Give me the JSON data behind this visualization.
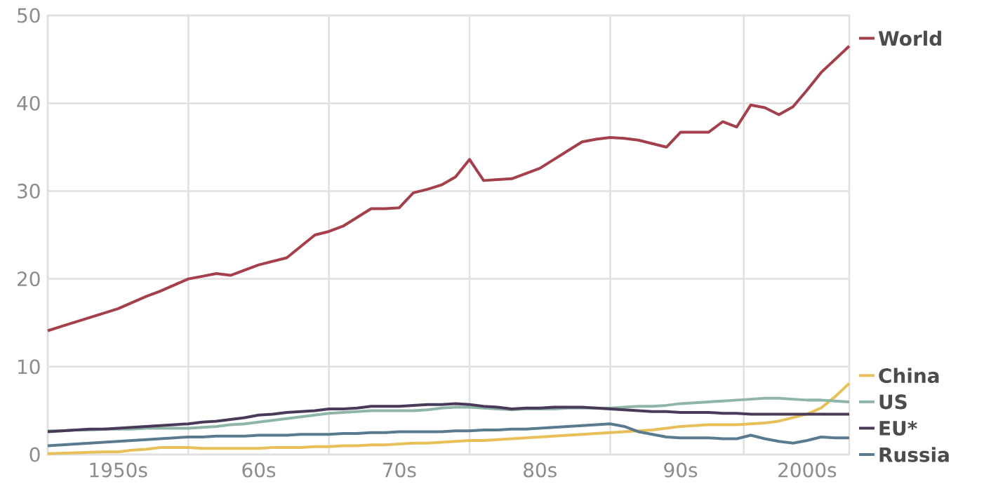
{
  "chart_data": {
    "type": "line",
    "categories": [
      null,
      null,
      null,
      null,
      null,
      "1950s",
      null,
      null,
      null,
      null,
      null,
      null,
      null,
      null,
      null,
      "60s",
      null,
      null,
      null,
      null,
      null,
      null,
      null,
      null,
      null,
      "70s",
      null,
      null,
      null,
      null,
      null,
      null,
      null,
      null,
      null,
      "80s",
      null,
      null,
      null,
      null,
      null,
      null,
      null,
      null,
      null,
      "90s",
      null,
      null,
      null,
      null,
      null,
      null,
      null,
      null,
      "2000s",
      null,
      null,
      null
    ],
    "series": [
      {
        "name": "World",
        "color": "#a3404c",
        "values": [
          14.1,
          14.6,
          15.1,
          15.6,
          16.1,
          16.6,
          17.3,
          18.0,
          18.6,
          19.3,
          20.0,
          20.3,
          20.6,
          20.4,
          21.0,
          21.6,
          22.0,
          22.4,
          23.7,
          25.0,
          25.4,
          26.0,
          27.0,
          28.0,
          28.0,
          28.1,
          29.8,
          30.2,
          30.7,
          31.6,
          33.6,
          31.2,
          31.3,
          31.4,
          32.0,
          32.6,
          33.6,
          34.6,
          35.6,
          35.9,
          36.1,
          36.0,
          35.8,
          35.4,
          35.0,
          36.7,
          36.7,
          36.7,
          37.9,
          37.3,
          39.8,
          39.5,
          38.7,
          39.6,
          41.5,
          43.5,
          45.0,
          46.5
        ]
      },
      {
        "name": "China",
        "color": "#e8c05a",
        "values": [
          0.1,
          0.15,
          0.2,
          0.25,
          0.3,
          0.3,
          0.5,
          0.6,
          0.8,
          0.8,
          0.8,
          0.7,
          0.7,
          0.7,
          0.7,
          0.7,
          0.8,
          0.8,
          0.8,
          0.9,
          0.9,
          1.0,
          1.0,
          1.1,
          1.1,
          1.2,
          1.3,
          1.3,
          1.4,
          1.5,
          1.6,
          1.6,
          1.7,
          1.8,
          1.9,
          2.0,
          2.1,
          2.2,
          2.3,
          2.4,
          2.5,
          2.6,
          2.7,
          2.8,
          3.0,
          3.2,
          3.3,
          3.4,
          3.4,
          3.4,
          3.5,
          3.6,
          3.8,
          4.2,
          4.6,
          5.3,
          6.6,
          8.1
        ]
      },
      {
        "name": "US",
        "color": "#8fb5a8",
        "values": [
          2.7,
          2.7,
          2.8,
          2.8,
          2.9,
          2.9,
          2.9,
          3.0,
          3.0,
          3.0,
          3.0,
          3.1,
          3.2,
          3.4,
          3.5,
          3.7,
          3.9,
          4.1,
          4.3,
          4.5,
          4.7,
          4.8,
          4.9,
          5.0,
          5.0,
          5.0,
          5.0,
          5.1,
          5.3,
          5.4,
          5.4,
          5.3,
          5.2,
          5.1,
          5.2,
          5.2,
          5.2,
          5.3,
          5.3,
          5.3,
          5.3,
          5.4,
          5.5,
          5.5,
          5.6,
          5.8,
          5.9,
          6.0,
          6.1,
          6.2,
          6.3,
          6.4,
          6.4,
          6.3,
          6.2,
          6.2,
          6.1,
          6.0
        ]
      },
      {
        "name": "EU*",
        "color": "#4a3a5a",
        "values": [
          2.6,
          2.7,
          2.8,
          2.9,
          2.9,
          3.0,
          3.1,
          3.2,
          3.3,
          3.4,
          3.5,
          3.7,
          3.8,
          4.0,
          4.2,
          4.5,
          4.6,
          4.8,
          4.9,
          5.0,
          5.2,
          5.2,
          5.3,
          5.5,
          5.5,
          5.5,
          5.6,
          5.7,
          5.7,
          5.8,
          5.7,
          5.5,
          5.4,
          5.2,
          5.3,
          5.3,
          5.4,
          5.4,
          5.4,
          5.3,
          5.2,
          5.1,
          5.0,
          4.9,
          4.9,
          4.8,
          4.8,
          4.8,
          4.7,
          4.7,
          4.6,
          4.6,
          4.6,
          4.6,
          4.6,
          4.6,
          4.6,
          4.6
        ]
      },
      {
        "name": "Russia",
        "color": "#5a7a90",
        "values": [
          1.0,
          1.1,
          1.2,
          1.3,
          1.4,
          1.5,
          1.6,
          1.7,
          1.8,
          1.9,
          2.0,
          2.0,
          2.1,
          2.1,
          2.1,
          2.2,
          2.2,
          2.2,
          2.3,
          2.3,
          2.3,
          2.4,
          2.4,
          2.5,
          2.5,
          2.6,
          2.6,
          2.6,
          2.6,
          2.7,
          2.7,
          2.8,
          2.8,
          2.9,
          2.9,
          3.0,
          3.1,
          3.2,
          3.3,
          3.4,
          3.5,
          3.2,
          2.6,
          2.3,
          2.0,
          1.9,
          1.9,
          1.9,
          1.8,
          1.8,
          2.2,
          1.8,
          1.5,
          1.3,
          1.6,
          2.0,
          1.9,
          1.9
        ]
      }
    ],
    "ylim": [
      0,
      50
    ],
    "yticks": [
      0,
      10,
      20,
      30,
      40,
      50
    ],
    "grid": true,
    "legend": "right",
    "marker": "none",
    "line_style": "solid"
  }
}
